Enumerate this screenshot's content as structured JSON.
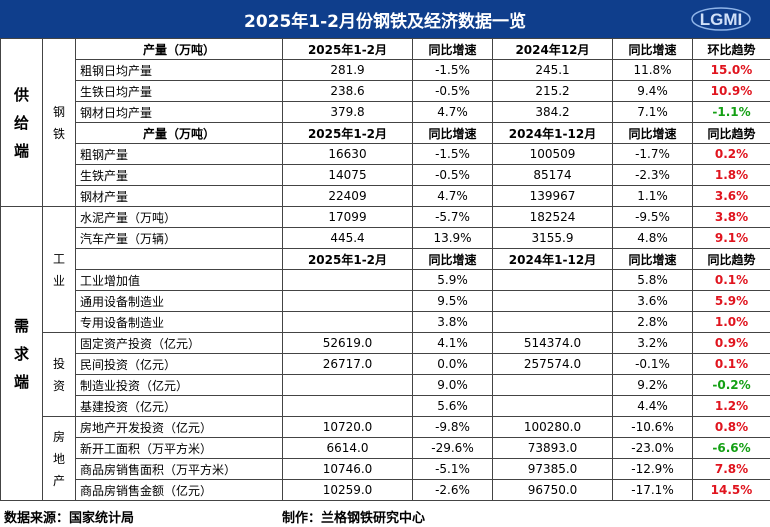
{
  "title": "2025年1-2月份钢铁及经济数据一览",
  "logo_text": "LGMI",
  "sections": {
    "supply": "供给端",
    "steel": "钢铁",
    "demand": "需求端",
    "industry": "工业",
    "investment": "投资",
    "realestate": "房地产"
  },
  "headers": {
    "h1": [
      "产量（万吨）",
      "2025年1-2月",
      "同比增速",
      "2024年12月",
      "同比增速",
      "环比趋势"
    ],
    "h2": [
      "产量（万吨）",
      "2025年1-2月",
      "同比增速",
      "2024年1-12月",
      "同比增速",
      "同比趋势"
    ],
    "h3": [
      "",
      "2025年1-2月",
      "同比增速",
      "2024年1-12月",
      "同比增速",
      "同比趋势"
    ]
  },
  "rows": [
    {
      "name": "粗钢日均产量",
      "v1": "281.9",
      "g1": "-1.5%",
      "v2": "245.1",
      "g2": "11.8%",
      "t": "15.0%",
      "tc": "red"
    },
    {
      "name": "生铁日均产量",
      "v1": "238.6",
      "g1": "-0.5%",
      "v2": "215.2",
      "g2": "9.4%",
      "t": "10.9%",
      "tc": "red"
    },
    {
      "name": "钢材日均产量",
      "v1": "379.8",
      "g1": "4.7%",
      "v2": "384.2",
      "g2": "7.1%",
      "t": "-1.1%",
      "tc": "green"
    },
    {
      "name": "粗钢产量",
      "v1": "16630",
      "g1": "-1.5%",
      "v2": "100509",
      "g2": "-1.7%",
      "t": "0.2%",
      "tc": "red"
    },
    {
      "name": "生铁产量",
      "v1": "14075",
      "g1": "-0.5%",
      "v2": "85174",
      "g2": "-2.3%",
      "t": "1.8%",
      "tc": "red"
    },
    {
      "name": "钢材产量",
      "v1": "22409",
      "g1": "4.7%",
      "v2": "139967",
      "g2": "1.1%",
      "t": "3.6%",
      "tc": "red"
    },
    {
      "name": "水泥产量（万吨）",
      "v1": "17099",
      "g1": "-5.7%",
      "v2": "182524",
      "g2": "-9.5%",
      "t": "3.8%",
      "tc": "red"
    },
    {
      "name": "汽车产量（万辆）",
      "v1": "445.4",
      "g1": "13.9%",
      "v2": "3155.9",
      "g2": "4.8%",
      "t": "9.1%",
      "tc": "red"
    },
    {
      "name": "工业增加值",
      "v1": "",
      "g1": "5.9%",
      "v2": "",
      "g2": "5.8%",
      "t": "0.1%",
      "tc": "red"
    },
    {
      "name": "通用设备制造业",
      "v1": "",
      "g1": "9.5%",
      "v2": "",
      "g2": "3.6%",
      "t": "5.9%",
      "tc": "red"
    },
    {
      "name": "专用设备制造业",
      "v1": "",
      "g1": "3.8%",
      "v2": "",
      "g2": "2.8%",
      "t": "1.0%",
      "tc": "red"
    },
    {
      "name": "固定资产投资（亿元）",
      "v1": "52619.0",
      "g1": "4.1%",
      "v2": "514374.0",
      "g2": "3.2%",
      "t": "0.9%",
      "tc": "red"
    },
    {
      "name": "民间投资（亿元）",
      "v1": "26717.0",
      "g1": "0.0%",
      "v2": "257574.0",
      "g2": "-0.1%",
      "t": "0.1%",
      "tc": "red"
    },
    {
      "name": "制造业投资（亿元）",
      "v1": "",
      "g1": "9.0%",
      "v2": "",
      "g2": "9.2%",
      "t": "-0.2%",
      "tc": "green"
    },
    {
      "name": "基建投资（亿元）",
      "v1": "",
      "g1": "5.6%",
      "v2": "",
      "g2": "4.4%",
      "t": "1.2%",
      "tc": "red"
    },
    {
      "name": "房地产开发投资（亿元）",
      "v1": "10720.0",
      "g1": "-9.8%",
      "v2": "100280.0",
      "g2": "-10.6%",
      "t": "0.8%",
      "tc": "red"
    },
    {
      "name": "新开工面积（万平方米）",
      "v1": "6614.0",
      "g1": "-29.6%",
      "v2": "73893.0",
      "g2": "-23.0%",
      "t": "-6.6%",
      "tc": "green"
    },
    {
      "name": "商品房销售面积（万平方米）",
      "v1": "10746.0",
      "g1": "-5.1%",
      "v2": "97385.0",
      "g2": "-12.9%",
      "t": "7.8%",
      "tc": "red"
    },
    {
      "name": "商品房销售金额（亿元）",
      "v1": "10259.0",
      "g1": "-2.6%",
      "v2": "96750.0",
      "g2": "-17.1%",
      "t": "14.5%",
      "tc": "red"
    }
  ],
  "footer": {
    "source": "数据来源：国家统计局",
    "maker": "制作：兰格钢铁研究中心"
  }
}
